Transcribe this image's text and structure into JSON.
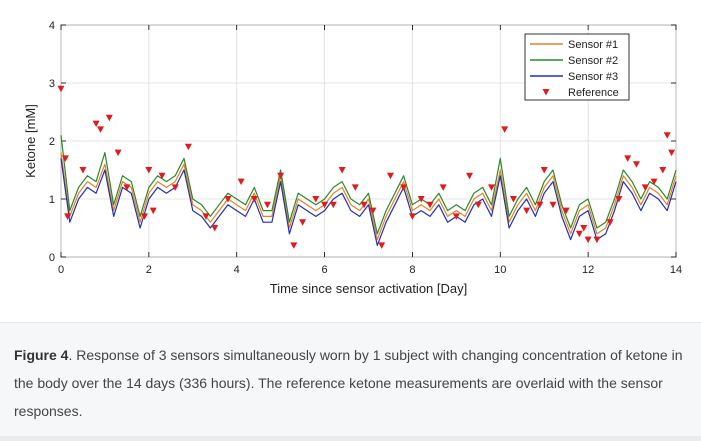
{
  "chart_data": {
    "type": "line",
    "xlabel": "Time since sensor activation [Day]",
    "ylabel": "Ketone [mM]",
    "xlim": [
      0,
      14
    ],
    "ylim": [
      0,
      4
    ],
    "x_ticks": [
      0,
      2,
      4,
      6,
      8,
      10,
      12,
      14
    ],
    "y_ticks": [
      0,
      1,
      2,
      3,
      4
    ],
    "grid": true,
    "legend_position": "top-right",
    "x": [
      0,
      0.2,
      0.4,
      0.6,
      0.8,
      1.0,
      1.2,
      1.4,
      1.6,
      1.8,
      2.0,
      2.2,
      2.4,
      2.6,
      2.8,
      3.0,
      3.2,
      3.4,
      3.6,
      3.8,
      4.0,
      4.2,
      4.4,
      4.6,
      4.8,
      5.0,
      5.2,
      5.4,
      5.6,
      5.8,
      6.0,
      6.2,
      6.4,
      6.6,
      6.8,
      7.0,
      7.2,
      7.4,
      7.6,
      7.8,
      8.0,
      8.2,
      8.4,
      8.6,
      8.8,
      9.0,
      9.2,
      9.4,
      9.6,
      9.8,
      10.0,
      10.2,
      10.4,
      10.6,
      10.8,
      11.0,
      11.2,
      11.4,
      11.6,
      11.8,
      12.0,
      12.2,
      12.4,
      12.6,
      12.8,
      13.0,
      13.2,
      13.4,
      13.6,
      13.8,
      14.0
    ],
    "series": [
      {
        "name": "Sensor #1",
        "color": "#e8821e",
        "line": true,
        "values": [
          1.8,
          0.7,
          1.1,
          1.3,
          1.2,
          1.6,
          0.8,
          1.3,
          1.2,
          0.6,
          1.1,
          1.3,
          1.2,
          1.3,
          1.6,
          0.9,
          0.8,
          0.6,
          0.8,
          1.0,
          0.9,
          0.8,
          1.1,
          0.7,
          0.7,
          1.4,
          0.5,
          1.0,
          0.9,
          0.8,
          0.9,
          1.1,
          1.2,
          0.9,
          0.8,
          1.0,
          0.3,
          0.7,
          1.0,
          1.3,
          0.8,
          0.9,
          0.8,
          1.0,
          0.7,
          0.8,
          0.7,
          1.0,
          1.1,
          0.8,
          1.5,
          0.6,
          0.9,
          1.1,
          0.8,
          1.2,
          1.4,
          0.8,
          0.4,
          0.8,
          0.9,
          0.4,
          0.5,
          0.9,
          1.4,
          1.2,
          0.9,
          1.2,
          1.1,
          0.9,
          1.4
        ]
      },
      {
        "name": "Sensor #2",
        "color": "#2a8a2a",
        "line": true,
        "values": [
          2.1,
          0.8,
          1.2,
          1.4,
          1.3,
          1.8,
          0.9,
          1.4,
          1.3,
          0.7,
          1.2,
          1.4,
          1.3,
          1.4,
          1.7,
          1.0,
          0.9,
          0.7,
          0.9,
          1.1,
          1.0,
          0.9,
          1.2,
          0.8,
          0.8,
          1.5,
          0.6,
          1.1,
          1.0,
          0.9,
          1.0,
          1.2,
          1.3,
          1.0,
          0.9,
          1.1,
          0.4,
          0.8,
          1.1,
          1.4,
          0.9,
          1.0,
          0.9,
          1.1,
          0.8,
          0.9,
          0.8,
          1.1,
          1.2,
          0.9,
          1.7,
          0.7,
          1.0,
          1.2,
          0.9,
          1.3,
          1.5,
          0.9,
          0.5,
          0.9,
          1.0,
          0.5,
          0.6,
          1.0,
          1.5,
          1.3,
          1.0,
          1.3,
          1.2,
          1.0,
          1.5
        ]
      },
      {
        "name": "Sensor #3",
        "color": "#1f2fbf",
        "line": true,
        "values": [
          1.7,
          0.6,
          1.0,
          1.2,
          1.1,
          1.5,
          0.7,
          1.2,
          1.1,
          0.5,
          1.0,
          1.2,
          1.1,
          1.2,
          1.5,
          0.8,
          0.7,
          0.5,
          0.7,
          0.9,
          0.8,
          0.7,
          1.0,
          0.6,
          0.6,
          1.3,
          0.4,
          0.9,
          0.8,
          0.7,
          0.8,
          1.0,
          1.1,
          0.8,
          0.7,
          0.9,
          0.2,
          0.6,
          0.9,
          1.2,
          0.7,
          0.8,
          0.7,
          0.9,
          0.6,
          0.7,
          0.6,
          0.9,
          1.0,
          0.7,
          1.4,
          0.5,
          0.8,
          1.0,
          0.7,
          1.1,
          1.3,
          0.7,
          0.3,
          0.7,
          0.8,
          0.3,
          0.4,
          0.8,
          1.3,
          1.1,
          0.8,
          1.1,
          1.0,
          0.8,
          1.3
        ]
      }
    ],
    "reference": {
      "name": "Reference",
      "color": "#e01b1b",
      "marker": "triangle-down",
      "x": [
        0.0,
        0.1,
        0.15,
        0.5,
        0.8,
        0.9,
        1.1,
        1.3,
        1.5,
        1.9,
        2.0,
        2.1,
        2.3,
        2.6,
        2.9,
        3.3,
        3.5,
        3.8,
        4.1,
        4.4,
        4.7,
        5.0,
        5.3,
        5.5,
        5.8,
        6.0,
        6.2,
        6.4,
        6.7,
        6.9,
        7.1,
        7.3,
        7.5,
        7.8,
        8.0,
        8.2,
        8.4,
        8.7,
        9.0,
        9.3,
        9.5,
        9.8,
        10.1,
        10.3,
        10.6,
        10.9,
        11.0,
        11.2,
        11.5,
        11.8,
        11.9,
        12.0,
        12.2,
        12.5,
        12.7,
        12.9,
        13.1,
        13.3,
        13.5,
        13.7,
        13.8,
        13.9
      ],
      "y": [
        2.9,
        1.7,
        0.7,
        1.5,
        2.3,
        2.2,
        2.4,
        1.8,
        1.2,
        0.7,
        1.5,
        0.8,
        1.4,
        1.2,
        1.9,
        0.7,
        0.5,
        1.0,
        1.3,
        1.0,
        0.9,
        1.4,
        0.2,
        0.6,
        1.0,
        0.9,
        0.9,
        1.5,
        1.2,
        0.9,
        0.8,
        0.2,
        1.4,
        1.2,
        0.7,
        1.0,
        0.9,
        1.2,
        0.7,
        1.4,
        0.9,
        1.2,
        2.2,
        1.0,
        0.8,
        0.9,
        1.5,
        0.9,
        0.8,
        0.4,
        0.5,
        0.3,
        0.3,
        0.6,
        1.0,
        1.7,
        1.6,
        1.2,
        1.3,
        1.5,
        2.1,
        1.8
      ]
    }
  },
  "caption": {
    "label": "Figure 4",
    "text": ". Response of 3 sensors simultaneously worn by 1 subject with changing concentration of ketone in the body over the 14 days (336 hours). The reference ketone measurements are overlaid with the sensor responses."
  }
}
